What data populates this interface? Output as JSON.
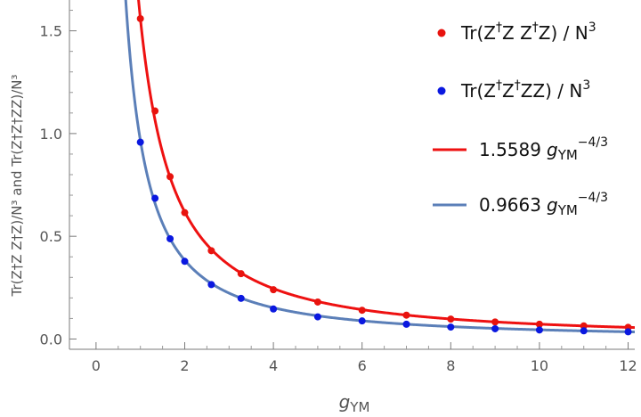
{
  "chart_data": {
    "type": "scatter",
    "title": "",
    "xlabel": {
      "base": "g",
      "sub": "YM"
    },
    "ylabel": "Tr(Z†Z Z†Z)/N³ and Tr(Z†Z†ZZ)/N³",
    "xlim": [
      -0.6,
      12.15
    ],
    "ylim": [
      -0.05,
      1.65
    ],
    "xticks": [
      0,
      2,
      4,
      6,
      8,
      10,
      12
    ],
    "yticks": [
      0.0,
      0.5,
      1.0,
      1.5
    ],
    "ytick_labels": [
      "0.0",
      "0.5",
      "1.0",
      "1.5"
    ],
    "series": [
      {
        "name": "Tr(Z†Z Z†Z) / N³",
        "kind": "points",
        "color": "#e8130e",
        "x": [
          1.0,
          1.33,
          1.67,
          2.0,
          2.6,
          3.27,
          4.0,
          5.0,
          6.0,
          7.0,
          8.0,
          9.0,
          10.0,
          11.0,
          12.0
        ],
        "y": [
          1.559,
          1.11,
          0.79,
          0.615,
          0.43,
          0.318,
          0.24,
          0.18,
          0.14,
          0.116,
          0.097,
          0.083,
          0.072,
          0.064,
          0.057
        ]
      },
      {
        "name": "Tr(Z†Z†ZZ) / N³",
        "kind": "points",
        "color": "#0a18e0",
        "x": [
          1.0,
          1.33,
          1.67,
          2.0,
          2.6,
          3.27,
          4.0,
          5.0,
          6.0,
          7.0,
          8.0,
          9.0,
          10.0,
          11.0,
          12.0
        ],
        "y": [
          0.958,
          0.685,
          0.488,
          0.378,
          0.265,
          0.198,
          0.146,
          0.108,
          0.088,
          0.072,
          0.058,
          0.05,
          0.044,
          0.04,
          0.035
        ]
      },
      {
        "name": "1.5589 gYM^-4/3",
        "kind": "fit",
        "coef": 1.5589,
        "exponent": -1.3333,
        "color": "#ee1111",
        "label_coef": "1.5589",
        "label_g": "g",
        "label_sub": "YM",
        "label_sup": "−4/3"
      },
      {
        "name": "0.9663 gYM^-4/3",
        "kind": "fit",
        "coef": 0.9663,
        "exponent": -1.3333,
        "color": "#5b7fb8",
        "label_coef": "0.9663",
        "label_g": "g",
        "label_sub": "YM",
        "label_sup": "−4/3"
      }
    ],
    "legend": {
      "position": "top-right",
      "entries": [
        {
          "prefix": "Tr(Z",
          "d1": "†",
          "mid": "Z Z",
          "d2": "†",
          "suffix": "Z) / N",
          "sup": "3"
        },
        {
          "prefix": "Tr(Z",
          "d1": "†",
          "mid": "Z",
          "d2": "†",
          "suffix": "ZZ) / N",
          "sup": "3"
        }
      ]
    }
  }
}
